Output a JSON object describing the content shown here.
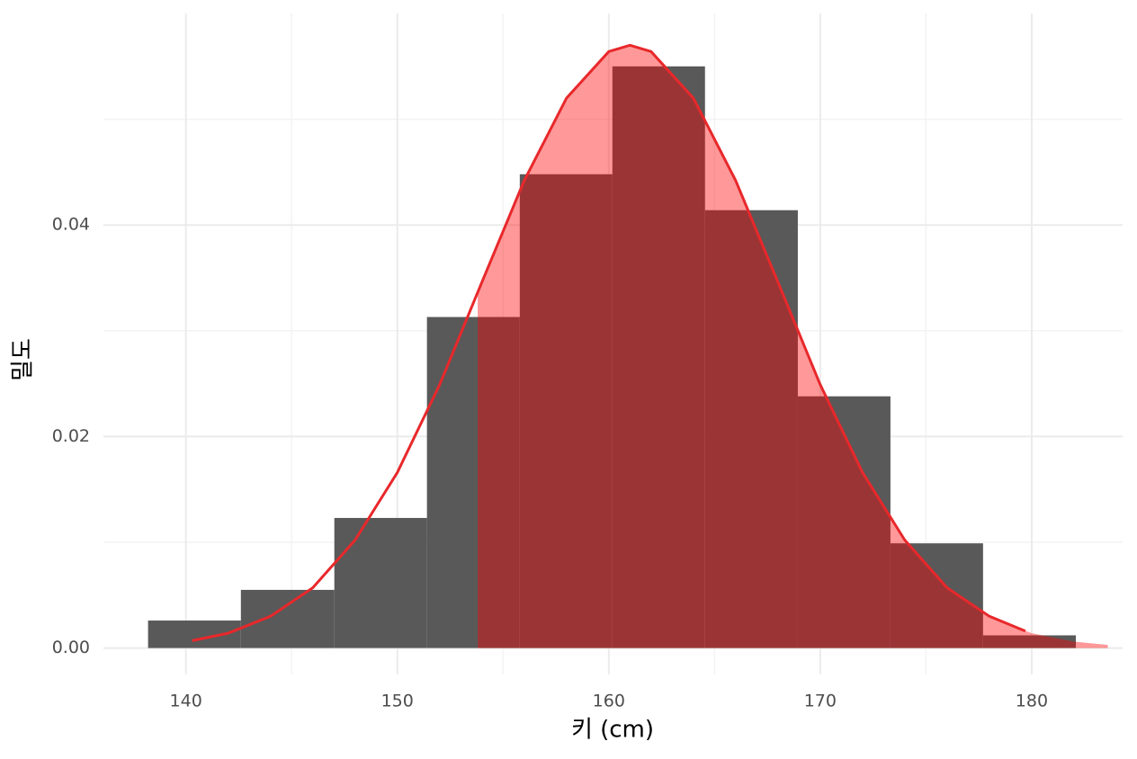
{
  "chart_data": {
    "type": "histogram",
    "x_label": "키 (cm)",
    "y_label": "밀도",
    "bins": [
      138.21,
      142.6,
      147.02,
      151.4,
      155.79,
      160.17,
      164.55,
      168.94,
      173.32,
      177.7,
      182.09
    ],
    "counts": [
      0.0026,
      0.0055,
      0.0123,
      0.0313,
      0.0448,
      0.055,
      0.0414,
      0.0238,
      0.0099,
      0.0012
    ],
    "color": "#595959",
    "shaded_area": {
      "x": [
        153.8,
        154,
        156,
        158,
        160,
        161,
        162,
        164,
        166,
        168,
        170,
        172,
        174,
        176,
        178,
        180,
        182,
        183.6
      ],
      "y": [
        0.0336,
        0.0346,
        0.0442,
        0.052,
        0.0564,
        0.057,
        0.0564,
        0.052,
        0.0442,
        0.0346,
        0.0249,
        0.0166,
        0.0102,
        0.0057,
        0.003,
        0.0014,
        0.0006,
        0.0003
      ],
      "color": "#ff0000",
      "opacity": 0.4
    },
    "density_curve": {
      "x": [
        140.3,
        142,
        144,
        146,
        148,
        150,
        152,
        154,
        156,
        158,
        160,
        161,
        162,
        164,
        166,
        168,
        170,
        172,
        174,
        176,
        178,
        179.7
      ],
      "y": [
        0.0007,
        0.0014,
        0.003,
        0.0057,
        0.0102,
        0.0166,
        0.0249,
        0.0346,
        0.0442,
        0.052,
        0.0564,
        0.057,
        0.0564,
        0.052,
        0.0442,
        0.0346,
        0.0249,
        0.0166,
        0.0102,
        0.0057,
        0.003,
        0.0016
      ],
      "color": "#e8282b"
    },
    "xlim": [
      136.1,
      184.3
    ],
    "ylim": [
      -0.0025,
      0.06
    ],
    "xticks": [
      140,
      150,
      160,
      170,
      180
    ],
    "yticks": [
      {
        "value": 0,
        "label": "0.00"
      },
      {
        "value": 0.02,
        "label": "0.02"
      },
      {
        "value": 0.04,
        "label": "0.04"
      }
    ],
    "x_minor_ticks": [
      145,
      155,
      165,
      175
    ],
    "y_minor_ticks": [
      0.01,
      0.03,
      0.05
    ],
    "grid": true
  }
}
